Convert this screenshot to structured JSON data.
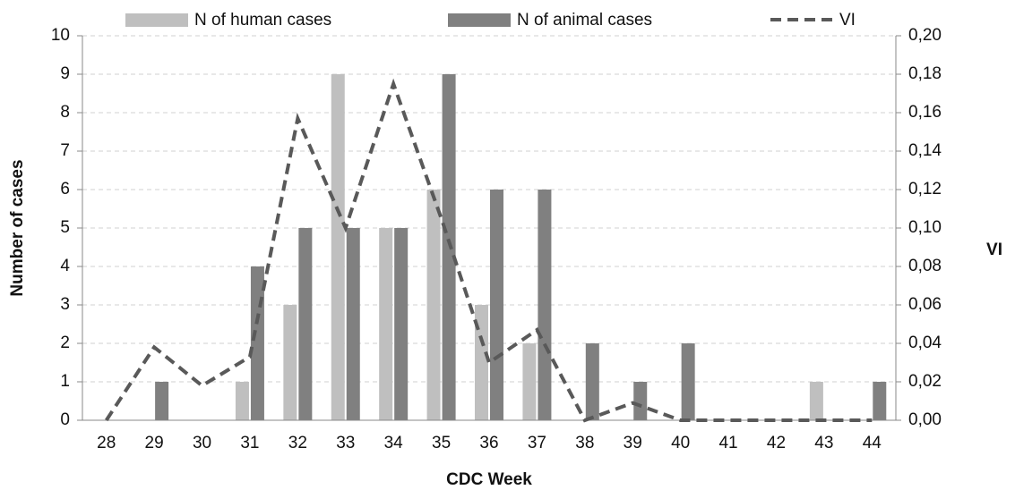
{
  "chart_data": {
    "type": "bar",
    "x_label": "CDC Week",
    "y_label": "Number of cases",
    "y2_label": "VI",
    "categories": [
      "28",
      "29",
      "30",
      "31",
      "32",
      "33",
      "34",
      "35",
      "36",
      "37",
      "38",
      "39",
      "40",
      "41",
      "42",
      "43",
      "44"
    ],
    "series": [
      {
        "name": "N of human cases",
        "color": "#bfbfbf",
        "type": "bar",
        "values": [
          0,
          0,
          0,
          1,
          3,
          9,
          5,
          6,
          3,
          2,
          0,
          0,
          0,
          0,
          0,
          1,
          0
        ]
      },
      {
        "name": "N of animal cases",
        "color": "#808080",
        "type": "bar",
        "values": [
          0,
          1,
          0,
          4,
          5,
          5,
          5,
          9,
          6,
          6,
          2,
          1,
          2,
          0,
          0,
          0,
          1
        ]
      },
      {
        "name": "VI",
        "color": "#595959",
        "type": "line",
        "axis": "y2",
        "values": [
          0,
          0.038,
          0.018,
          0.033,
          0.157,
          0.1,
          0.175,
          0.105,
          0.03,
          0.047,
          0,
          0.009,
          0,
          0,
          0,
          0,
          0
        ]
      }
    ],
    "ylim": [
      0,
      10
    ],
    "yticks": [
      0,
      1,
      2,
      3,
      4,
      5,
      6,
      7,
      8,
      9,
      10
    ],
    "y2lim": [
      0,
      0.2
    ],
    "y2ticks": [
      {
        "value": 0,
        "label": "0,00"
      },
      {
        "value": 0.02,
        "label": "0,02"
      },
      {
        "value": 0.04,
        "label": "0,04"
      },
      {
        "value": 0.06,
        "label": "0,06"
      },
      {
        "value": 0.08,
        "label": "0,08"
      },
      {
        "value": 0.1,
        "label": "0,10"
      },
      {
        "value": 0.12,
        "label": "0,12"
      },
      {
        "value": 0.14,
        "label": "0,14"
      },
      {
        "value": 0.16,
        "label": "0,16"
      },
      {
        "value": 0.18,
        "label": "0,18"
      },
      {
        "value": 0.2,
        "label": "0,20"
      }
    ],
    "grid": true,
    "legend": "top"
  }
}
